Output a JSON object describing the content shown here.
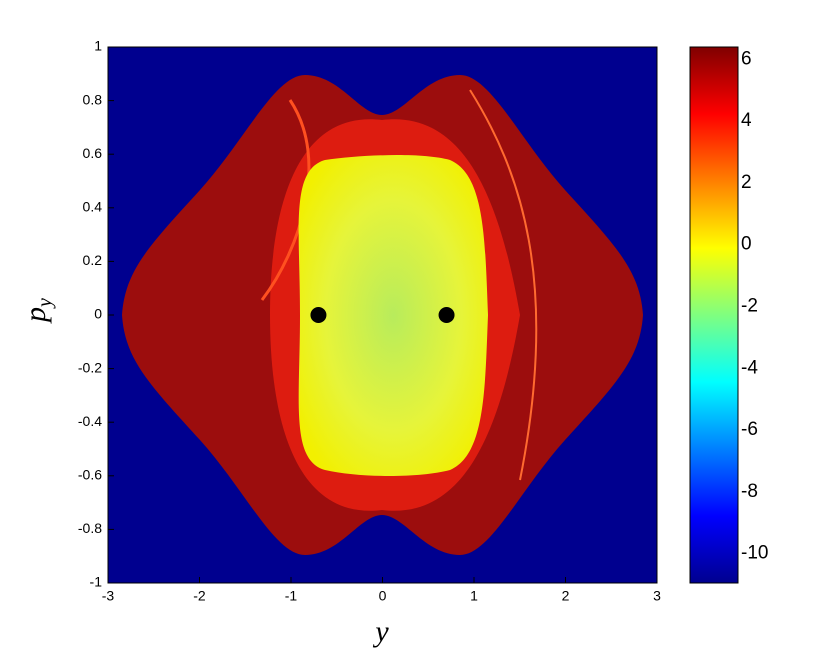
{
  "chart_data": {
    "type": "scatter",
    "xlabel": "y",
    "ylabel": "p",
    "ylabel_subscript": "y",
    "xlim": [
      -3,
      3
    ],
    "xticks": [
      -3,
      -2,
      -1,
      0,
      1,
      2,
      3
    ],
    "ylim": [
      -1,
      1
    ],
    "yticks": [
      -1,
      -0.8,
      -0.6,
      -0.4,
      -0.2,
      0,
      0.2,
      0.4,
      0.6,
      0.8,
      1
    ],
    "series": [
      {
        "color": "#000000",
        "x": [
          -0.7,
          0.7
        ],
        "values": [
          0,
          0
        ]
      }
    ],
    "colorbar": {
      "clim": [
        -10.95,
        6.4
      ],
      "ticks": [
        -10,
        -8,
        -6,
        -4,
        -2,
        0,
        2,
        4,
        6
      ]
    }
  }
}
